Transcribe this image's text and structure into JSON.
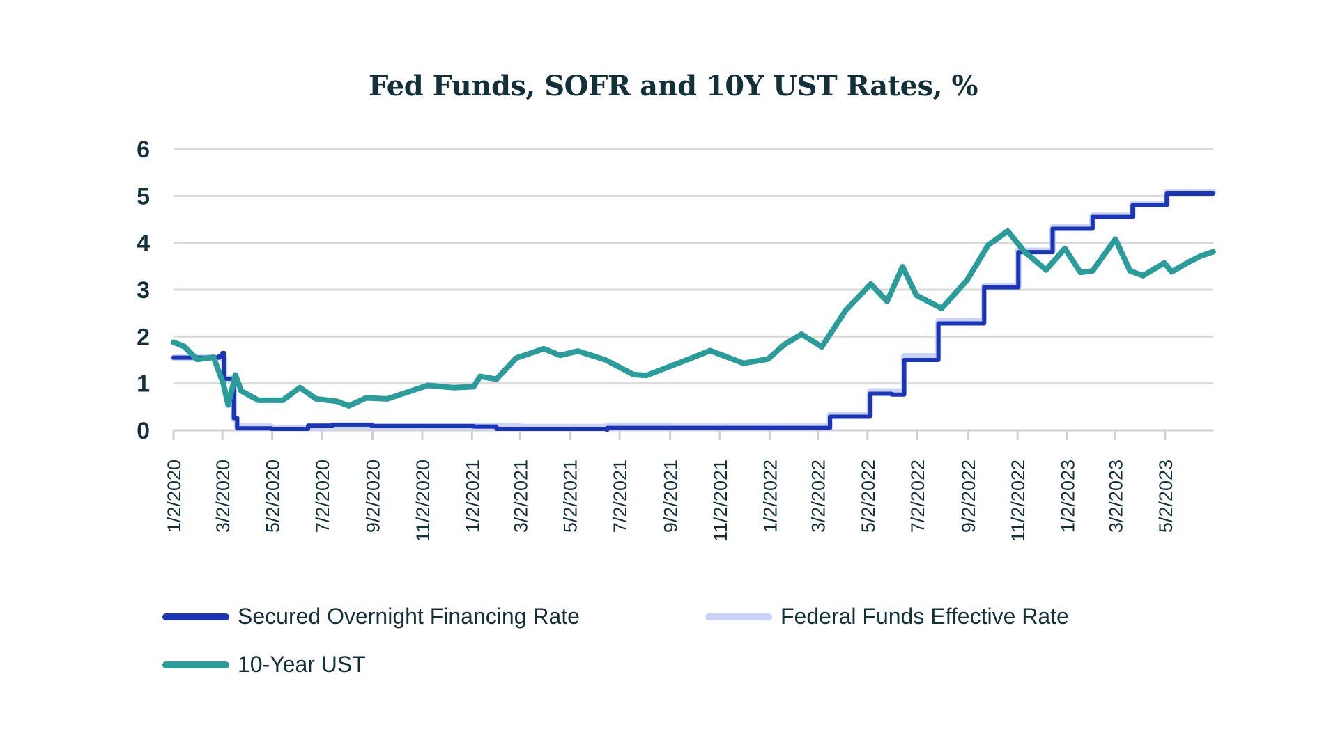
{
  "chart_data": {
    "type": "line",
    "title": "Fed Funds, SOFR and 10Y UST Rates, %",
    "xlabel": "",
    "ylabel": "",
    "xlim": [
      "2020-01-02",
      "2023-06-30"
    ],
    "ylim": [
      0,
      6
    ],
    "y_ticks": [
      "0",
      "1",
      "2",
      "3",
      "4",
      "5",
      "6"
    ],
    "x_ticks": [
      {
        "date": "2020-01-02",
        "label": "1/2/2020"
      },
      {
        "date": "2020-03-02",
        "label": "3/2/2020"
      },
      {
        "date": "2020-05-02",
        "label": "5/2/2020"
      },
      {
        "date": "2020-07-02",
        "label": "7/2/2020"
      },
      {
        "date": "2020-09-02",
        "label": "9/2/2020"
      },
      {
        "date": "2020-11-02",
        "label": "11/2/2020"
      },
      {
        "date": "2021-01-02",
        "label": "1/2/2021"
      },
      {
        "date": "2021-03-02",
        "label": "3/2/2021"
      },
      {
        "date": "2021-05-02",
        "label": "5/2/2021"
      },
      {
        "date": "2021-07-02",
        "label": "7/2/2021"
      },
      {
        "date": "2021-09-02",
        "label": "9/2/2021"
      },
      {
        "date": "2021-11-02",
        "label": "11/2/2021"
      },
      {
        "date": "2022-01-02",
        "label": "1/2/2022"
      },
      {
        "date": "2022-03-02",
        "label": "3/2/2022"
      },
      {
        "date": "2022-05-02",
        "label": "5/2/2022"
      },
      {
        "date": "2022-07-02",
        "label": "7/2/2022"
      },
      {
        "date": "2022-09-02",
        "label": "9/2/2022"
      },
      {
        "date": "2022-11-02",
        "label": "11/2/2022"
      },
      {
        "date": "2023-01-02",
        "label": "1/2/2023"
      },
      {
        "date": "2023-03-02",
        "label": "3/2/2023"
      },
      {
        "date": "2023-05-02",
        "label": "5/2/2023"
      }
    ],
    "grid": "horizontal",
    "legend_position": "bottom",
    "series": [
      {
        "name": "Secured Overnight Financing Rate",
        "color": "#1a35b8",
        "step": true,
        "points": [
          [
            "2020-01-02",
            1.55
          ],
          [
            "2020-02-27",
            1.58
          ],
          [
            "2020-03-02",
            1.65
          ],
          [
            "2020-03-04",
            1.1
          ],
          [
            "2020-03-16",
            0.26
          ],
          [
            "2020-03-20",
            0.04
          ],
          [
            "2020-05-01",
            0.03
          ],
          [
            "2020-06-15",
            0.1
          ],
          [
            "2020-07-15",
            0.12
          ],
          [
            "2020-09-01",
            0.09
          ],
          [
            "2020-11-01",
            0.09
          ],
          [
            "2021-01-04",
            0.08
          ],
          [
            "2021-02-01",
            0.03
          ],
          [
            "2021-06-16",
            0.01
          ],
          [
            "2021-06-17",
            0.05
          ],
          [
            "2021-09-01",
            0.05
          ],
          [
            "2022-03-17",
            0.29
          ],
          [
            "2022-05-05",
            0.78
          ],
          [
            "2022-06-01",
            0.76
          ],
          [
            "2022-06-16",
            1.5
          ],
          [
            "2022-07-28",
            2.28
          ],
          [
            "2022-09-22",
            3.05
          ],
          [
            "2022-11-03",
            3.8
          ],
          [
            "2022-12-15",
            4.3
          ],
          [
            "2023-02-02",
            4.55
          ],
          [
            "2023-03-23",
            4.8
          ],
          [
            "2023-05-04",
            5.05
          ],
          [
            "2023-06-30",
            5.05
          ]
        ]
      },
      {
        "name": "Federal Funds Effective Rate",
        "color": "#c9d3fa",
        "step": true,
        "points": [
          [
            "2020-01-02",
            1.55
          ],
          [
            "2020-03-04",
            1.1
          ],
          [
            "2020-03-16",
            0.25
          ],
          [
            "2020-03-20",
            0.08
          ],
          [
            "2020-05-01",
            0.05
          ],
          [
            "2020-07-01",
            0.09
          ],
          [
            "2020-10-01",
            0.09
          ],
          [
            "2021-03-01",
            0.07
          ],
          [
            "2021-06-17",
            0.1
          ],
          [
            "2021-09-01",
            0.08
          ],
          [
            "2022-03-17",
            0.33
          ],
          [
            "2022-05-05",
            0.83
          ],
          [
            "2022-06-16",
            1.58
          ],
          [
            "2022-07-28",
            2.33
          ],
          [
            "2022-09-22",
            3.08
          ],
          [
            "2022-11-03",
            3.83
          ],
          [
            "2022-12-15",
            4.33
          ],
          [
            "2023-02-02",
            4.58
          ],
          [
            "2023-03-23",
            4.83
          ],
          [
            "2023-05-04",
            5.08
          ],
          [
            "2023-06-30",
            5.08
          ]
        ]
      },
      {
        "name": "10-Year UST",
        "color": "#2a9d9a",
        "step": false,
        "points": [
          [
            "2020-01-02",
            1.88
          ],
          [
            "2020-01-15",
            1.79
          ],
          [
            "2020-01-31",
            1.51
          ],
          [
            "2020-02-20",
            1.56
          ],
          [
            "2020-03-03",
            1.0
          ],
          [
            "2020-03-09",
            0.54
          ],
          [
            "2020-03-18",
            1.18
          ],
          [
            "2020-03-25",
            0.84
          ],
          [
            "2020-04-15",
            0.64
          ],
          [
            "2020-05-15",
            0.64
          ],
          [
            "2020-06-05",
            0.91
          ],
          [
            "2020-06-25",
            0.67
          ],
          [
            "2020-07-20",
            0.62
          ],
          [
            "2020-08-04",
            0.52
          ],
          [
            "2020-08-25",
            0.69
          ],
          [
            "2020-09-20",
            0.67
          ],
          [
            "2020-10-09",
            0.78
          ],
          [
            "2020-11-09",
            0.96
          ],
          [
            "2020-12-10",
            0.91
          ],
          [
            "2021-01-04",
            0.93
          ],
          [
            "2021-01-12",
            1.15
          ],
          [
            "2021-02-01",
            1.09
          ],
          [
            "2021-02-25",
            1.54
          ],
          [
            "2021-03-31",
            1.74
          ],
          [
            "2021-04-20",
            1.6
          ],
          [
            "2021-05-12",
            1.69
          ],
          [
            "2021-06-15",
            1.5
          ],
          [
            "2021-07-19",
            1.19
          ],
          [
            "2021-08-04",
            1.17
          ],
          [
            "2021-09-28",
            1.54
          ],
          [
            "2021-10-21",
            1.7
          ],
          [
            "2021-12-01",
            1.43
          ],
          [
            "2021-12-31",
            1.52
          ],
          [
            "2022-01-20",
            1.83
          ],
          [
            "2022-02-10",
            2.05
          ],
          [
            "2022-03-07",
            1.78
          ],
          [
            "2022-04-05",
            2.55
          ],
          [
            "2022-05-06",
            3.12
          ],
          [
            "2022-05-26",
            2.75
          ],
          [
            "2022-06-14",
            3.49
          ],
          [
            "2022-07-01",
            2.88
          ],
          [
            "2022-08-01",
            2.6
          ],
          [
            "2022-09-01",
            3.2
          ],
          [
            "2022-09-27",
            3.95
          ],
          [
            "2022-10-21",
            4.25
          ],
          [
            "2022-11-10",
            3.82
          ],
          [
            "2022-12-07",
            3.42
          ],
          [
            "2022-12-30",
            3.88
          ],
          [
            "2023-01-18",
            3.37
          ],
          [
            "2023-02-02",
            3.4
          ],
          [
            "2023-03-02",
            4.08
          ],
          [
            "2023-03-20",
            3.4
          ],
          [
            "2023-04-05",
            3.3
          ],
          [
            "2023-05-01",
            3.57
          ],
          [
            "2023-05-10",
            3.38
          ],
          [
            "2023-06-01",
            3.6
          ],
          [
            "2023-06-15",
            3.72
          ],
          [
            "2023-06-30",
            3.81
          ]
        ]
      }
    ]
  }
}
